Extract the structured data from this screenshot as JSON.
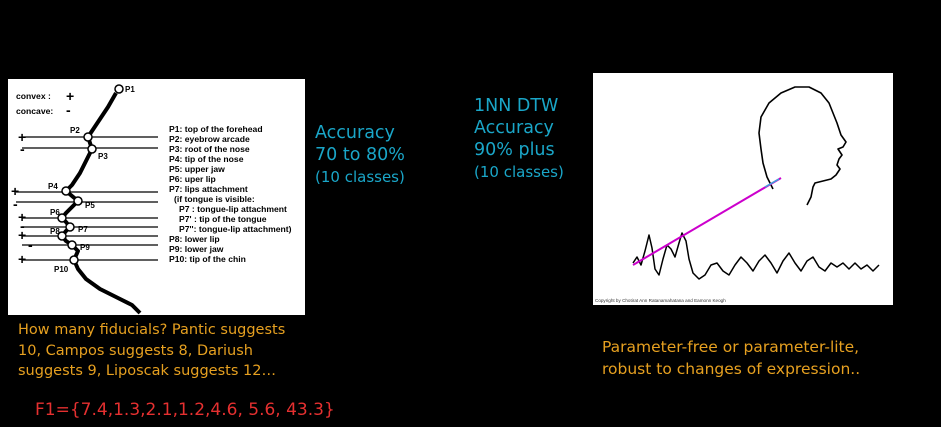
{
  "left_figure": {
    "convex_label": "convex :",
    "convex_sym": "+",
    "concave_label": "concave:",
    "concave_sym": "-",
    "points": [
      "P1",
      "P2",
      "P3",
      "P4",
      "P5",
      "P6",
      "P7",
      "P8",
      "P9",
      "P10"
    ],
    "row_signs": [
      "+",
      "-",
      "+",
      "-",
      "+",
      "-",
      "+",
      "-",
      "+"
    ],
    "legend": [
      "P1: top of the forehead",
      "P2: eyebrow arcade",
      "P3: root of the nose",
      "P4: tip of the nose",
      "P5: upper jaw",
      "P6: uper lip",
      "P7: lips attachment",
      "(if tongue is visible:",
      "P7  : tongue-lip attachment",
      "P7' : tip of the tongue",
      "P7'': tongue-lip attachment)",
      "P8: lower lip",
      "P9: lower jaw",
      "P10: tip of the chin"
    ]
  },
  "left_accuracy": [
    "Accuracy",
    "70 to 80%",
    "(10 classes)"
  ],
  "left_caption": [
    "How many fiducials? Pantic suggests",
    "10, Campos suggests 8, Dariush",
    "suggests 9, Liposcak suggests 12…"
  ],
  "feature_vector": "F1={7.4,1.3,2.1,1.2,4.6, 5.6, 43.3}",
  "right_accuracy": [
    "1NN DTW",
    "Accuracy",
    "90% plus",
    "(10 classes)"
  ],
  "right_figure": {
    "copyright": "Copyright by Chotirat Ann Ratanamahatana and Eamonn Keogh"
  },
  "right_caption": [
    "Parameter-free or parameter-lite,",
    "robust to changes of expression.."
  ],
  "colors": {
    "accuracy": "#1aa6c8",
    "caption": "#e6a020",
    "vector": "#e53030",
    "warp_line": "#cc00cc"
  }
}
